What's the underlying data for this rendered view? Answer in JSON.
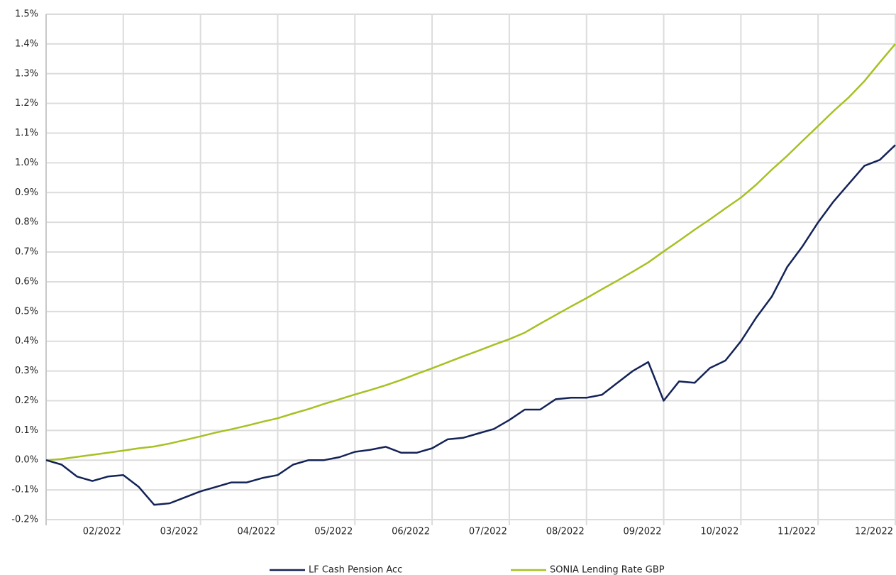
{
  "chart_data": {
    "type": "line",
    "categories": [
      null,
      null,
      null,
      null,
      null,
      "02/2022",
      null,
      null,
      null,
      null,
      "03/2022",
      null,
      null,
      null,
      null,
      "04/2022",
      null,
      null,
      null,
      null,
      "05/2022",
      null,
      null,
      null,
      null,
      "06/2022",
      null,
      null,
      null,
      null,
      "07/2022",
      null,
      null,
      null,
      null,
      "08/2022",
      null,
      null,
      null,
      null,
      "09/2022",
      null,
      null,
      null,
      null,
      "10/2022",
      null,
      null,
      null,
      null,
      "11/2022",
      null,
      null,
      null,
      null,
      "12/2022"
    ],
    "series": [
      {
        "name": "LF Cash Pension Acc",
        "color": "#142357",
        "values": [
          0.0,
          -0.015,
          -0.055,
          -0.07,
          -0.055,
          -0.05,
          -0.09,
          -0.15,
          -0.145,
          -0.125,
          -0.105,
          -0.09,
          -0.075,
          -0.075,
          -0.06,
          -0.05,
          -0.015,
          0.0,
          0.0,
          0.01,
          0.028,
          0.035,
          0.045,
          0.025,
          0.025,
          0.04,
          0.07,
          0.075,
          0.09,
          0.105,
          0.135,
          0.17,
          0.17,
          0.205,
          0.21,
          0.21,
          0.22,
          0.26,
          0.3,
          0.33,
          0.2,
          0.265,
          0.26,
          0.31,
          0.335,
          0.4,
          0.48,
          0.55,
          0.65,
          0.72,
          0.8,
          0.87,
          0.93,
          0.99,
          1.01,
          1.06
        ]
      },
      {
        "name": "SONIA Lending Rate GBP",
        "color": "#a8c022",
        "values": [
          0.0,
          0.004,
          0.011,
          0.018,
          0.025,
          0.032,
          0.04,
          0.046,
          0.056,
          0.068,
          0.08,
          0.093,
          0.104,
          0.116,
          0.129,
          0.141,
          0.157,
          0.172,
          0.189,
          0.205,
          0.221,
          0.236,
          0.252,
          0.27,
          0.29,
          0.309,
          0.329,
          0.349,
          0.368,
          0.388,
          0.407,
          0.429,
          0.459,
          0.488,
          0.517,
          0.545,
          0.575,
          0.604,
          0.634,
          0.665,
          0.702,
          0.738,
          0.775,
          0.81,
          0.847,
          0.883,
          0.927,
          0.977,
          1.024,
          1.074,
          1.124,
          1.174,
          1.221,
          1.275,
          1.338,
          1.4
        ]
      }
    ],
    "ylim": [
      -0.2,
      1.5
    ],
    "yticks": [
      {
        "value": -0.2,
        "label": "-0.2%"
      },
      {
        "value": -0.1,
        "label": "-0.1%"
      },
      {
        "value": 0.0,
        "label": "0.0%"
      },
      {
        "value": 0.1,
        "label": "0.1%"
      },
      {
        "value": 0.2,
        "label": "0.2%"
      },
      {
        "value": 0.3,
        "label": "0.3%"
      },
      {
        "value": 0.4,
        "label": "0.4%"
      },
      {
        "value": 0.5,
        "label": "0.5%"
      },
      {
        "value": 0.6,
        "label": "0.6%"
      },
      {
        "value": 0.7,
        "label": "0.7%"
      },
      {
        "value": 0.8,
        "label": "0.8%"
      },
      {
        "value": 0.9,
        "label": "0.9%"
      },
      {
        "value": 1.0,
        "label": "1.0%"
      },
      {
        "value": 1.1,
        "label": "1.1%"
      },
      {
        "value": 1.2,
        "label": "1.2%"
      },
      {
        "value": 1.3,
        "label": "1.3%"
      },
      {
        "value": 1.4,
        "label": "1.4%"
      },
      {
        "value": 1.5,
        "label": "1.5%"
      }
    ],
    "grid": true
  }
}
